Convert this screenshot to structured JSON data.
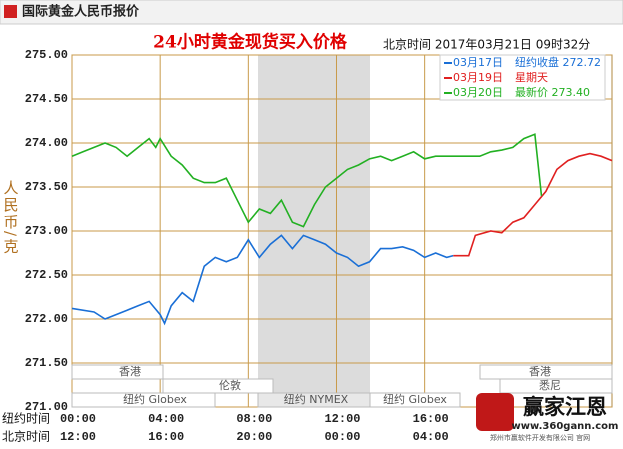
{
  "header": {
    "title": "国际黄金人民币报价"
  },
  "chart_data": {
    "type": "line",
    "title": "24小时黄金现货买入价格",
    "subtitle": "北京时间 2017年03月21日 09时32分",
    "ylabel": "人民币/克",
    "xlabel": "纽约时间",
    "x2label": "北京时间",
    "xlim": [
      0,
      24.5
    ],
    "xticks": [
      {
        "value": 0,
        "label": "00:00"
      },
      {
        "value": 4,
        "label": "04:00"
      },
      {
        "value": 8,
        "label": "08:00"
      },
      {
        "value": 12,
        "label": "12:00"
      },
      {
        "value": 16,
        "label": "16:00"
      }
    ],
    "x2ticks": [
      {
        "value": 0,
        "label": "12:00"
      },
      {
        "value": 4,
        "label": "16:00"
      },
      {
        "value": 8,
        "label": "20:00"
      },
      {
        "value": 12,
        "label": "00:00"
      },
      {
        "value": 16,
        "label": "04:00"
      }
    ],
    "ylim": [
      271,
      275
    ],
    "yticks": [
      {
        "value": 271,
        "label": "271.00"
      },
      {
        "value": 271.5,
        "label": "271.50"
      },
      {
        "value": 272,
        "label": "272.00"
      },
      {
        "value": 272.5,
        "label": "272.50"
      },
      {
        "value": 273,
        "label": "273.00"
      },
      {
        "value": 273.5,
        "label": "273.50"
      },
      {
        "value": 274,
        "label": "274.00"
      },
      {
        "value": 274.5,
        "label": "274.50"
      },
      {
        "value": 275,
        "label": "275.00"
      }
    ],
    "grid": true,
    "sessions": [
      "香港",
      "伦敦",
      "纽约 Globex",
      "纽约 NYMEX",
      "纽约 Globex",
      "香港",
      "悉尼"
    ],
    "series": [
      {
        "name": "03月17日",
        "legend_text": "纽约收盘 272.72",
        "color": "#1a6fd6",
        "x": [
          0,
          1,
          1.5,
          2,
          2.5,
          3,
          3.5,
          4,
          4.2,
          4.5,
          5,
          5.5,
          6,
          6.5,
          7,
          7.5,
          8,
          8.5,
          9,
          9.5,
          10,
          10.5,
          11,
          11.5,
          12,
          12.5,
          13,
          13.5,
          14,
          14.5,
          15,
          15.5,
          16,
          16.5,
          17,
          17.3
        ],
        "values": [
          272.12,
          272.08,
          272.0,
          272.05,
          272.1,
          272.15,
          272.2,
          272.05,
          271.95,
          272.15,
          272.3,
          272.2,
          272.6,
          272.7,
          272.65,
          272.7,
          272.9,
          272.7,
          272.85,
          272.95,
          272.8,
          272.95,
          272.9,
          272.85,
          272.75,
          272.7,
          272.6,
          272.65,
          272.8,
          272.8,
          272.82,
          272.78,
          272.7,
          272.75,
          272.7,
          272.72
        ]
      },
      {
        "name": "03月19日",
        "legend_text": "星期天",
        "color": "#e02020",
        "x": [
          17.3,
          18,
          18.3,
          19,
          19.5,
          20,
          20.5,
          21,
          21.5,
          22,
          22.5,
          23,
          23.5,
          24,
          24.5
        ],
        "values": [
          272.72,
          272.72,
          272.95,
          273.0,
          272.98,
          273.1,
          273.15,
          273.3,
          273.45,
          273.7,
          273.8,
          273.85,
          273.88,
          273.85,
          273.8
        ]
      },
      {
        "name": "03月20日",
        "legend_text": "最新价 273.40",
        "color": "#22b022",
        "x": [
          0,
          0.5,
          1,
          1.5,
          2,
          2.5,
          3,
          3.5,
          3.8,
          4,
          4.5,
          5,
          5.5,
          6,
          6.5,
          7,
          7.5,
          8,
          8.5,
          9,
          9.5,
          10,
          10.5,
          11,
          11.5,
          12,
          12.5,
          13,
          13.5,
          14,
          14.5,
          15,
          15.5,
          16,
          16.5,
          17,
          17.5,
          18,
          18.5,
          19,
          19.5,
          20,
          20.5,
          21,
          21.3
        ],
        "values": [
          273.85,
          273.9,
          273.95,
          274.0,
          273.95,
          273.85,
          273.95,
          274.05,
          273.95,
          274.05,
          273.85,
          273.75,
          273.6,
          273.55,
          273.55,
          273.6,
          273.35,
          273.1,
          273.25,
          273.2,
          273.35,
          273.1,
          273.05,
          273.3,
          273.5,
          273.6,
          273.7,
          273.75,
          273.82,
          273.85,
          273.8,
          273.85,
          273.9,
          273.82,
          273.85,
          273.85,
          273.85,
          273.85,
          273.85,
          273.9,
          273.92,
          273.95,
          274.05,
          274.1,
          273.4
        ]
      }
    ]
  },
  "logo": {
    "name": "赢家江恩",
    "url": "www.360gann.com",
    "company": "郑州市赢软件开发有限公司 官网"
  }
}
